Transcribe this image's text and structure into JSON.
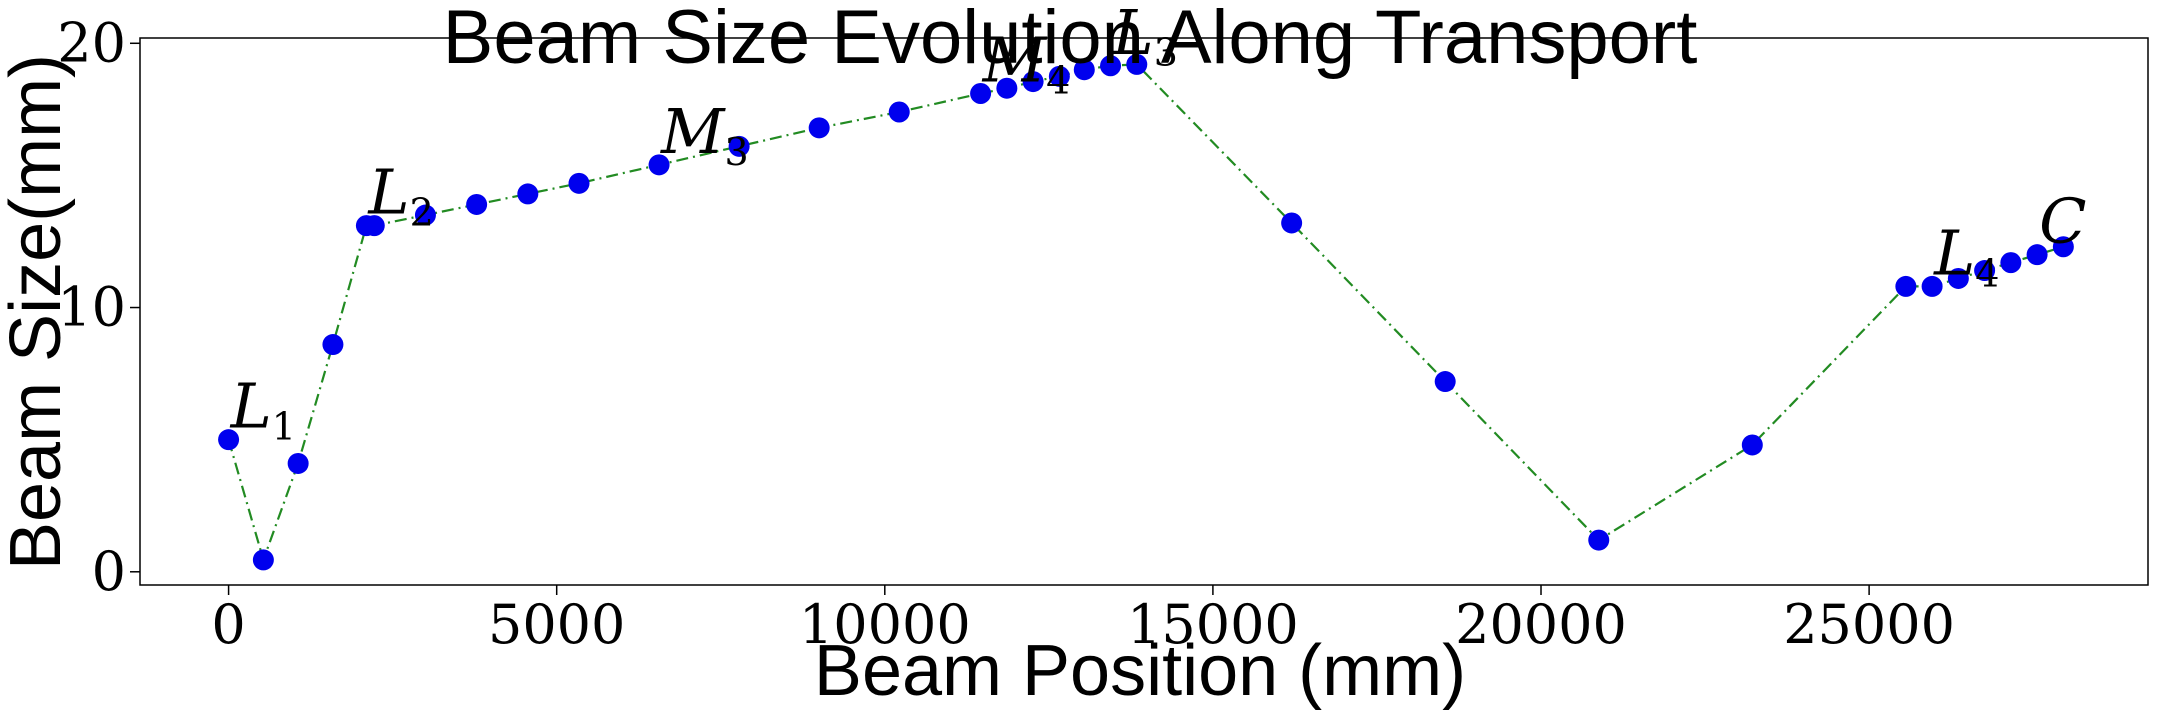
{
  "chart_data": {
    "type": "line",
    "title": "Beam Size Evolution Along Transport",
    "xlabel": "Beam Position (mm)",
    "ylabel": "Beam Size(mm)",
    "xlim": [
      -1350,
      29250
    ],
    "ylim": [
      -0.5,
      20.2
    ],
    "xticks": [
      0,
      5000,
      10000,
      15000,
      20000,
      25000
    ],
    "xtick_labels": [
      "0",
      "5000",
      "10000",
      "15000",
      "20000",
      "25000"
    ],
    "yticks": [
      0,
      10,
      20
    ],
    "ytick_labels": [
      "0",
      "10",
      "20"
    ],
    "grid": false,
    "legend": "none",
    "colors": {
      "line": "#228b22",
      "marker": "#0000ee"
    },
    "series": [
      {
        "x": [
          0,
          530,
          1060,
          1590,
          2100,
          2220,
          3000,
          3780,
          4560,
          5340,
          6560,
          7780,
          9000,
          10220,
          11460,
          11860,
          12260,
          12660,
          13040,
          13440,
          13840,
          16200,
          18540,
          20880,
          23220,
          25560,
          25960,
          26360,
          26760,
          27160,
          27560,
          27960
        ],
        "y": [
          5.0,
          0.45,
          4.1,
          8.6,
          13.1,
          13.1,
          13.5,
          13.9,
          14.3,
          14.7,
          15.4,
          16.1,
          16.8,
          17.4,
          18.1,
          18.3,
          18.55,
          18.75,
          19.0,
          19.15,
          19.2,
          13.2,
          7.2,
          1.2,
          4.8,
          10.8,
          10.8,
          11.1,
          11.4,
          11.7,
          12.0,
          12.3
        ]
      }
    ],
    "annotations": [
      {
        "text": "L",
        "sub": "1",
        "x": 0,
        "y": 5.0
      },
      {
        "text": "L",
        "sub": "2",
        "x": 2100,
        "y": 13.1
      },
      {
        "text": "M",
        "sub": "3",
        "x": 6560,
        "y": 15.4
      },
      {
        "text": "M",
        "sub": "4",
        "x": 11460,
        "y": 18.1
      },
      {
        "text": "L",
        "sub": "3",
        "x": 13440,
        "y": 19.15
      },
      {
        "text": "L",
        "sub": "4",
        "x": 25960,
        "y": 10.8
      },
      {
        "text": "C",
        "sub": "",
        "x": 27560,
        "y": 12.0
      }
    ]
  }
}
